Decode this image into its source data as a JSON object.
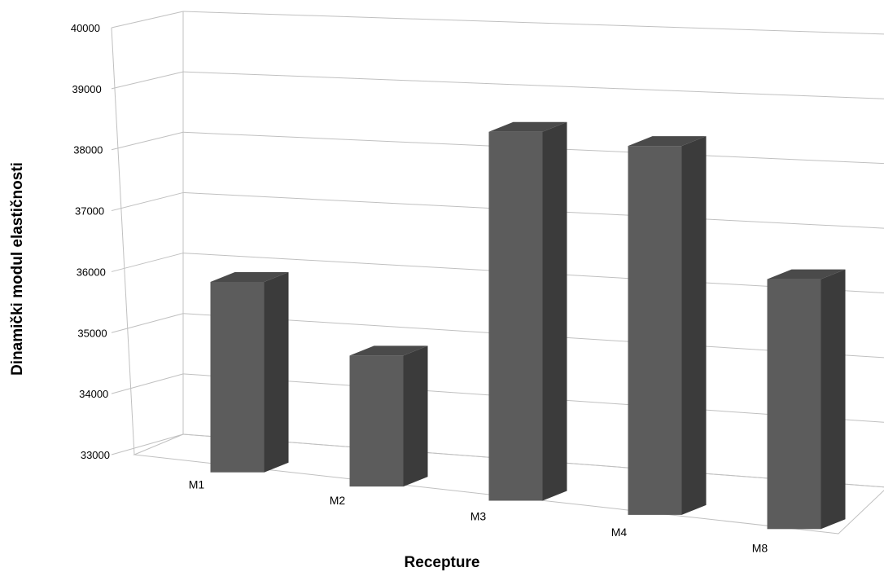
{
  "chart_data": {
    "type": "bar",
    "style": "3d-column",
    "categories": [
      "M1",
      "M2",
      "M3",
      "M4",
      "M8"
    ],
    "values": [
      36200,
      35200,
      39200,
      39200,
      37200
    ],
    "xlabel": "Recepture",
    "ylabel": "Dinamički modul elastičnosti",
    "ylim": [
      33000,
      40000
    ],
    "yticks": [
      "33000",
      "34000",
      "35000",
      "36000",
      "37000",
      "38000",
      "39000",
      "40000"
    ],
    "grid": true,
    "legend": "none",
    "colors": {
      "bar_front": "#5c5c5c",
      "bar_side": "#3b3b3b",
      "bar_top": "#4a4a4a",
      "gridline": "#c0c0c0"
    }
  }
}
